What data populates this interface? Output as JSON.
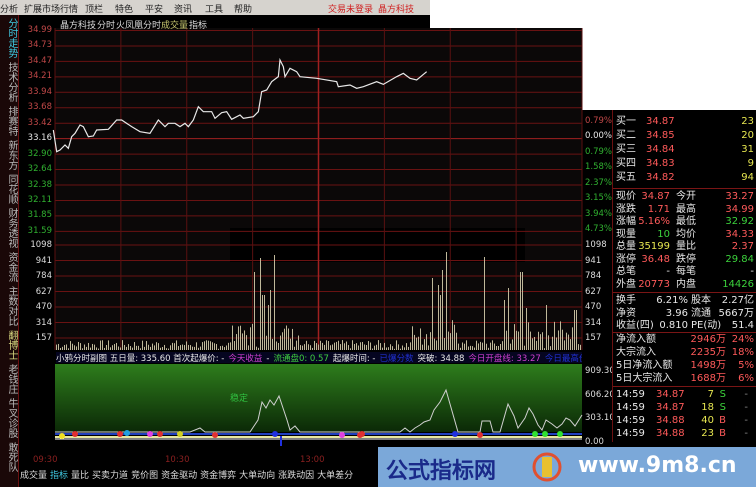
{
  "menu": {
    "items": [
      "分析",
      "扩展市场行情",
      "顶栏",
      "特色",
      "平安",
      "资讯",
      "工具",
      "帮助"
    ],
    "login_status": "交易未登录",
    "stock_name": "晶方科技"
  },
  "sidebar": {
    "tabs": [
      "分时走势",
      "技术分析",
      "排赛特",
      "新东方",
      "同花顺",
      "财务透视",
      "资金流",
      "主数对比",
      "翻博士",
      "老钱庄",
      "牛叉诊股",
      "敢死队"
    ],
    "active": 0
  },
  "chart_header": {
    "stock": "晶方科技",
    "mode": "分时",
    "indicator": "火凤凰分时",
    "volume": "成交量",
    "index": "指标"
  },
  "price_axis": [
    "34.99",
    "34.73",
    "34.47",
    "34.21",
    "33.94",
    "33.68",
    "33.42",
    "33.16",
    "32.90",
    "32.64",
    "32.38",
    "32.11",
    "31.85",
    "31.59"
  ],
  "pct_axis": [
    "0.79%",
    "0.00%",
    "0.79%",
    "1.58%",
    "2.37%",
    "3.15%",
    "3.94%",
    "4.73%"
  ],
  "volume_axis": [
    "1098",
    "941",
    "784",
    "627",
    "470",
    "314",
    "157"
  ],
  "sub_header": [
    {
      "text": "小鸦分时副图 五日量: 335.60 首次起爆价: -",
      "color": "#e8e8e8"
    },
    {
      "text": "今天收益",
      "color": "#d040d0"
    },
    {
      "text": "-",
      "color": "#e8e8e8"
    },
    {
      "text": "流通盘0: 0.57",
      "color": "#40d040"
    },
    {
      "text": "起爆时间: -",
      "color": "#e8e8e8"
    },
    {
      "text": "已爆分数",
      "color": "#2030d0"
    },
    {
      "text": "突破: 34.88",
      "color": "#e8e8e8"
    },
    {
      "text": "今日开盘线: 33.27",
      "color": "#d040d0"
    },
    {
      "text": "今日最高价",
      "color": "#2030d0"
    },
    {
      "text": "×",
      "color": "#8080ff"
    }
  ],
  "sub_axis": [
    "909.30",
    "606.20",
    "303.10",
    "0.00"
  ],
  "sub_label": "稳定",
  "time_axis": [
    "09:30",
    "10:30",
    "13:00"
  ],
  "bottom_tabs": [
    "成交量",
    "指标",
    "量比",
    "买卖力道",
    "竞价图",
    "资金驱动",
    "资金博弈",
    "大单动向",
    "涨跌动因",
    "大单差分"
  ],
  "bottom_active": 1,
  "watermark": {
    "left": "公式指标网",
    "right": "www.9m8.cn"
  },
  "quote": {
    "bids": [
      {
        "label": "买一",
        "price": "34.87",
        "vol": "23"
      },
      {
        "label": "买二",
        "price": "34.85",
        "vol": "20"
      },
      {
        "label": "买三",
        "price": "34.84",
        "vol": "31"
      },
      {
        "label": "买四",
        "price": "34.83",
        "vol": "9"
      },
      {
        "label": "买五",
        "price": "34.82",
        "vol": "94"
      }
    ],
    "stats": [
      [
        "现价",
        "34.87",
        "今开",
        "33.27",
        "r",
        "r"
      ],
      [
        "涨跌",
        "1.71",
        "最高",
        "34.99",
        "r",
        "r"
      ],
      [
        "涨幅",
        "5.16%",
        "最低",
        "32.92",
        "r",
        "g"
      ],
      [
        "现量",
        "10",
        "均价",
        "34.33",
        "g",
        "r"
      ],
      [
        "总量",
        "35199",
        "量比",
        "2.37",
        "y",
        "r"
      ],
      [
        "涨停",
        "36.48",
        "跌停",
        "29.84",
        "r",
        "g"
      ],
      [
        "总笔",
        "-",
        "每笔",
        "-",
        "w",
        "w"
      ],
      [
        "外盘",
        "20773",
        "内盘",
        "14426",
        "r",
        "g"
      ]
    ],
    "fundamentals": [
      [
        "换手",
        "6.21%",
        "股本",
        "2.27亿"
      ],
      [
        "净资",
        "3.96",
        "流通",
        "5667万"
      ],
      [
        "收益(四)",
        "0.810",
        "PE(动)",
        "51.4"
      ]
    ],
    "flows": [
      {
        "label": "净流入额",
        "value": "2946万",
        "pct": "24%"
      },
      {
        "label": "大宗流入",
        "value": "2235万",
        "pct": "18%"
      },
      {
        "label": "5日净流入额",
        "value": "1498万",
        "pct": "5%"
      },
      {
        "label": "5日大宗流入",
        "value": "1688万",
        "pct": "6%"
      }
    ],
    "ticks": [
      {
        "time": "14:59",
        "price": "34.87",
        "vol": "7",
        "side": "S",
        "extra": "-"
      },
      {
        "time": "14:59",
        "price": "34.87",
        "vol": "18",
        "side": "S",
        "extra": "-"
      },
      {
        "time": "14:59",
        "price": "34.88",
        "vol": "40",
        "side": "B",
        "extra": "-"
      },
      {
        "time": "14:59",
        "price": "34.88",
        "vol": "23",
        "side": "B",
        "extra": "-"
      }
    ]
  }
}
